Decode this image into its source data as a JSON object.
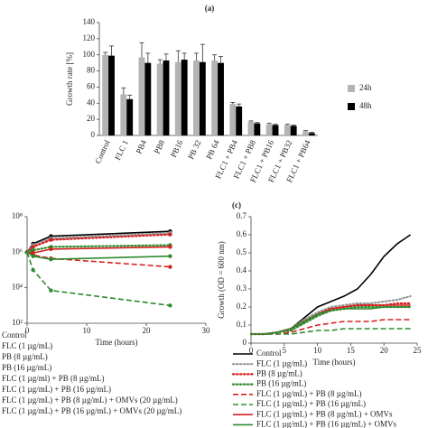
{
  "chart_data": [
    {
      "type": "bar",
      "panel_label": "(a)",
      "y_label": "Growth rate [%]",
      "categories": [
        "Control",
        "FLC 1",
        "PB4",
        "PB8",
        "PB16",
        "PB 32",
        "PB 64",
        "FLC1 + PB4",
        "FLC1 + PB8",
        "FLC1 + PB16",
        "FLC1 + PB32",
        "FLC1 + PB64"
      ],
      "series": [
        {
          "name": "24h",
          "color": "#b4b4b4",
          "values": [
            100,
            51,
            97,
            89,
            91,
            93,
            93,
            39,
            17,
            14,
            13,
            5
          ],
          "errors": [
            3,
            8,
            18,
            5,
            14,
            9,
            7,
            2,
            1,
            1,
            1,
            1
          ]
        },
        {
          "name": "48h",
          "color": "#000000",
          "values": [
            99,
            45,
            90,
            93,
            94,
            91,
            90,
            36,
            15,
            13,
            12,
            3
          ],
          "errors": [
            12,
            5,
            12,
            8,
            8,
            22,
            8,
            3,
            1,
            1,
            1,
            1
          ]
        }
      ],
      "ylim": [
        0,
        140
      ],
      "yticks": [
        0,
        20,
        40,
        60,
        80,
        100,
        120,
        140
      ],
      "legend": "right"
    },
    {
      "type": "line",
      "x_label": "Time (hours)",
      "log_scale": true,
      "markers": true,
      "x": [
        0,
        1,
        4,
        24
      ],
      "series": [
        {
          "name": "Control",
          "color": "#000000",
          "dash": "solid",
          "values": [
            1000000,
            3000000,
            8000000,
            15000000
          ]
        },
        {
          "name": "FLC (1 µg/mL)",
          "color": "#999999",
          "dash": "dotted",
          "values": [
            1000000,
            2500000,
            6000000,
            12000000
          ]
        },
        {
          "name": "PB (8 µg/mL)",
          "color": "#d42020",
          "dash": "dotted",
          "values": [
            1000000,
            2000000,
            5000000,
            10000000
          ]
        },
        {
          "name": "PB (16 µg/mL)",
          "color": "#2e8b2e",
          "dash": "dotted",
          "values": [
            1000000,
            1300000,
            2000000,
            2500000
          ]
        },
        {
          "name": "FLC (1 µg/ml) + PB (8 µg/mL)",
          "color": "#d42020",
          "dash": "dashed",
          "values": [
            1000000,
            700000,
            450000,
            150000
          ]
        },
        {
          "name": "FLC (1 µg/mL) + PB (16 µg/mL)",
          "color": "#2e8b2e",
          "dash": "dashed",
          "values": [
            1000000,
            100000,
            7000,
            1000
          ]
        },
        {
          "name": "FLC (1 µg/mL) + PB (8 µg/mL) + OMVs (20 µg/mL)",
          "color": "#d42020",
          "dash": "solid",
          "values": [
            1000000,
            900000,
            1500000,
            2000000
          ]
        },
        {
          "name": "FLC (1 µg/mL) + PB (16 µg/mL) + OMVs (20 µg/mL)",
          "color": "#2e8b2e",
          "dash": "solid",
          "values": [
            1000000,
            600000,
            400000,
            600000
          ]
        }
      ],
      "xlim": [
        0,
        30
      ],
      "xticks": [
        0,
        10,
        20,
        30
      ],
      "ylim": [
        100,
        100000000
      ],
      "yticks": [
        {
          "value": 100,
          "label": "10²"
        },
        {
          "value": 10000,
          "label": "10⁴"
        },
        {
          "value": 1000000,
          "label": "10⁶"
        },
        {
          "value": 100000000,
          "label": "10⁸"
        }
      ],
      "legend": "below"
    },
    {
      "type": "line",
      "panel_label": "(c)",
      "x_label": "Time (hours)",
      "y_label": "Growth (OD = 600 nm)",
      "markers": false,
      "x": [
        0,
        2,
        4,
        6,
        8,
        10,
        12,
        14,
        16,
        18,
        20,
        22,
        24
      ],
      "series": [
        {
          "name": "Control",
          "color": "#000000",
          "dash": "solid",
          "values": [
            0.05,
            0.05,
            0.06,
            0.08,
            0.14,
            0.2,
            0.23,
            0.26,
            0.3,
            0.38,
            0.48,
            0.55,
            0.6
          ]
        },
        {
          "name": "FLC (1 µg/mL)",
          "color": "#999999",
          "dash": "dotted",
          "values": [
            0.05,
            0.05,
            0.06,
            0.08,
            0.13,
            0.17,
            0.2,
            0.21,
            0.22,
            0.22,
            0.23,
            0.24,
            0.26
          ]
        },
        {
          "name": "PB (8 µg/mL)",
          "color": "#d42020",
          "dash": "dotted",
          "values": [
            0.05,
            0.05,
            0.06,
            0.08,
            0.12,
            0.16,
            0.19,
            0.2,
            0.21,
            0.21,
            0.21,
            0.22,
            0.22
          ]
        },
        {
          "name": "PB (16 µg/mL)",
          "color": "#2e8b2e",
          "dash": "dotted",
          "values": [
            0.05,
            0.05,
            0.06,
            0.07,
            0.11,
            0.15,
            0.18,
            0.19,
            0.2,
            0.2,
            0.2,
            0.2,
            0.2
          ]
        },
        {
          "name": "FLC (1 µg/mL) + PB (8 µg/mL)",
          "color": "#d42020",
          "dash": "dashed",
          "values": [
            0.05,
            0.05,
            0.05,
            0.06,
            0.08,
            0.1,
            0.11,
            0.12,
            0.12,
            0.12,
            0.13,
            0.13,
            0.13
          ]
        },
        {
          "name": "FLC (1 µg/mL) + PB (16 µg/mL)",
          "color": "#2e8b2e",
          "dash": "dashed",
          "values": [
            0.05,
            0.05,
            0.05,
            0.05,
            0.06,
            0.07,
            0.07,
            0.08,
            0.08,
            0.08,
            0.08,
            0.08,
            0.08
          ]
        },
        {
          "name": "FLC (1 µg/mL) + PB (8 µg/mL) + OMVs",
          "color": "#d42020",
          "dash": "solid",
          "values": [
            0.05,
            0.05,
            0.06,
            0.08,
            0.12,
            0.16,
            0.19,
            0.2,
            0.21,
            0.21,
            0.21,
            0.21,
            0.21
          ]
        },
        {
          "name": "FLC (1 µg/mL) + PB (16 µg/mL) + OMVs",
          "color": "#2e8b2e",
          "dash": "solid",
          "values": [
            0.05,
            0.05,
            0.06,
            0.08,
            0.12,
            0.16,
            0.18,
            0.19,
            0.19,
            0.19,
            0.2,
            0.2,
            0.2
          ]
        }
      ],
      "xlim": [
        0,
        25
      ],
      "xticks": [
        0,
        5,
        10,
        15,
        20,
        25
      ],
      "ylim": [
        0,
        0.7
      ],
      "yticks": [
        0,
        0.1,
        0.2,
        0.3,
        0.4,
        0.5,
        0.6,
        0.7
      ],
      "legend": "below"
    }
  ]
}
